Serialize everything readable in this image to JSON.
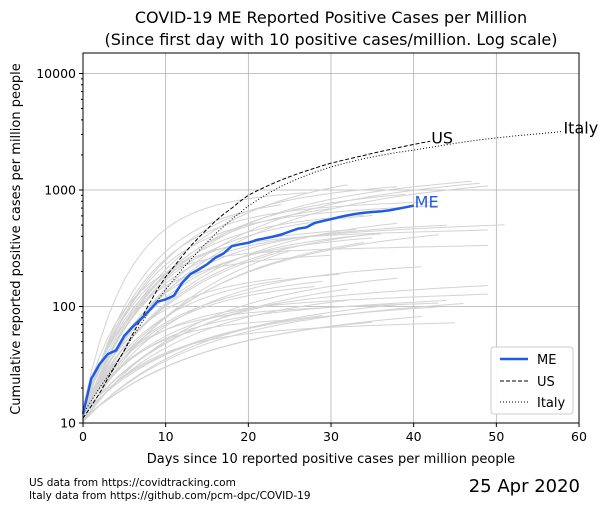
{
  "chart_data": {
    "type": "line",
    "title_line1": "COVID-19 ME Reported Positive Cases per Million",
    "title_line2": "(Since first day with 10 positive cases/million. Log scale)",
    "xlabel": "Days since 10 reported positive cases per million people",
    "ylabel": "Cumulative reported positive cases per million people",
    "xlim": [
      0,
      60
    ],
    "ylim": [
      10,
      15000
    ],
    "yscale": "log",
    "grid": true,
    "legend_position": "lower-right",
    "x_ticks": [
      0,
      10,
      20,
      30,
      40,
      50,
      60
    ],
    "y_ticks": [
      10,
      100,
      1000,
      10000
    ],
    "series": [
      {
        "name": "ME",
        "color": "#1f5ce6",
        "style": "solid",
        "x": [
          0,
          1,
          2,
          3,
          4,
          5,
          6,
          7,
          8,
          9,
          10,
          11,
          12,
          13,
          14,
          15,
          16,
          17,
          18,
          19,
          20,
          21,
          22,
          23,
          24,
          25,
          26,
          27,
          28,
          29,
          30,
          31,
          32,
          33,
          34,
          35,
          36,
          37,
          38,
          39,
          40
        ],
        "y": [
          12,
          24,
          32,
          39,
          42,
          56,
          67,
          78,
          92,
          110,
          115,
          124,
          160,
          190,
          208,
          230,
          262,
          285,
          330,
          342,
          352,
          372,
          385,
          398,
          415,
          440,
          465,
          478,
          520,
          542,
          562,
          585,
          605,
          625,
          638,
          648,
          655,
          668,
          688,
          710,
          735
        ]
      },
      {
        "name": "US",
        "color": "#000000",
        "style": "dashed",
        "x": [
          0,
          1,
          2,
          3,
          4,
          5,
          6,
          7,
          8,
          9,
          10,
          11,
          12,
          13,
          14,
          15,
          16,
          17,
          18,
          19,
          20,
          21,
          22,
          23,
          24,
          25,
          26,
          27,
          28,
          29,
          30,
          31,
          32,
          33,
          34,
          35,
          36,
          37,
          38,
          39,
          40,
          41,
          42
        ],
        "y": [
          11,
          14,
          18,
          24,
          32,
          42,
          58,
          78,
          105,
          140,
          180,
          220,
          270,
          330,
          390,
          460,
          540,
          620,
          700,
          800,
          900,
          980,
          1060,
          1140,
          1220,
          1300,
          1380,
          1460,
          1540,
          1620,
          1700,
          1770,
          1840,
          1910,
          1980,
          2060,
          2140,
          2220,
          2300,
          2380,
          2460,
          2540,
          2620
        ]
      },
      {
        "name": "Italy",
        "color": "#000000",
        "style": "dotted",
        "x": [
          0,
          2,
          4,
          6,
          8,
          10,
          12,
          14,
          16,
          18,
          20,
          22,
          24,
          26,
          28,
          30,
          32,
          34,
          36,
          38,
          40,
          42,
          44,
          46,
          48,
          50,
          52,
          54,
          56,
          58
        ],
        "y": [
          12,
          20,
          32,
          55,
          90,
          140,
          210,
          300,
          420,
          560,
          730,
          900,
          1080,
          1250,
          1420,
          1580,
          1720,
          1860,
          1980,
          2100,
          2200,
          2320,
          2450,
          2580,
          2700,
          2800,
          2900,
          2990,
          3080,
          3180
        ]
      }
    ],
    "other_states_color": "#d3d3d3",
    "annotations": [
      {
        "text": "Italy",
        "series": "Italy"
      },
      {
        "text": "US",
        "series": "US"
      },
      {
        "text": "ME",
        "series": "ME"
      }
    ]
  },
  "footnotes": {
    "us": "US data from https://covidtracking.com",
    "italy": "Italy data from https://github.com/pcm-dpc/COVID-19"
  },
  "date": "25 Apr 2020"
}
